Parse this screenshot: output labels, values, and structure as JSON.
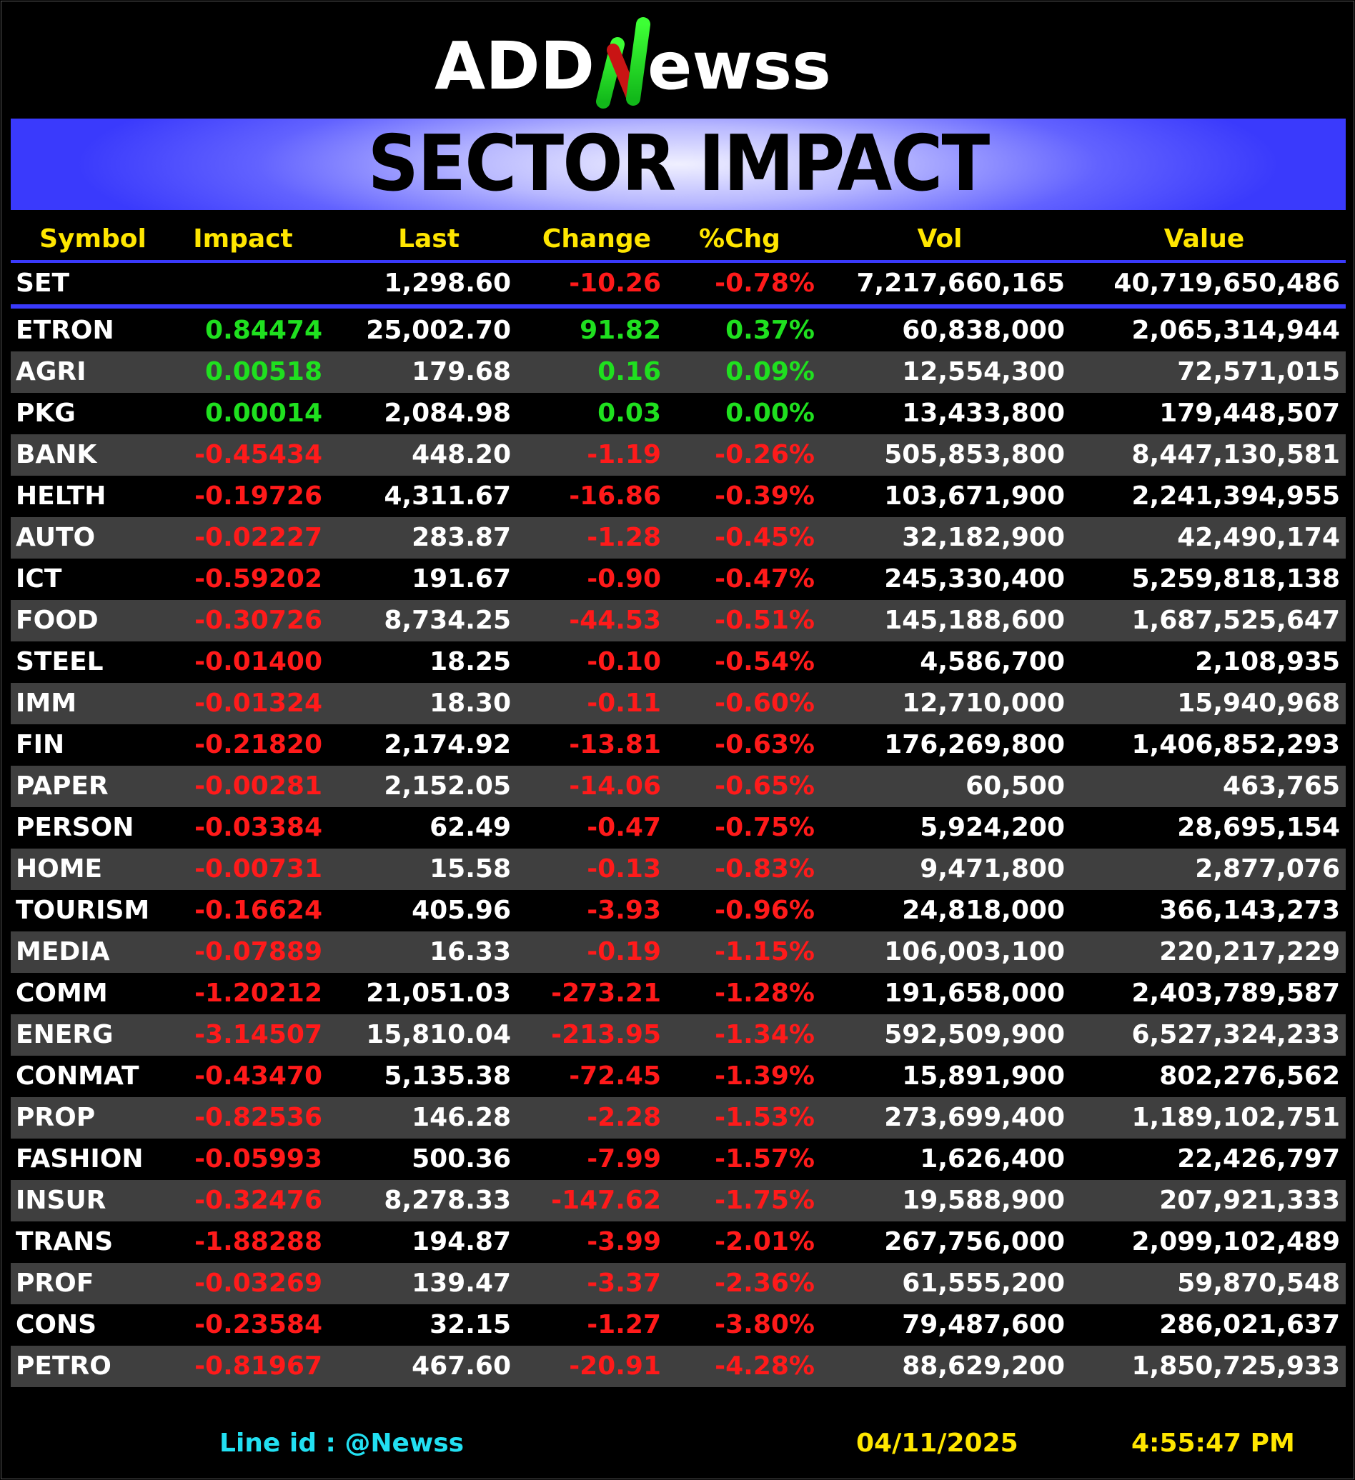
{
  "logo": {
    "text_left": "ADD",
    "text_right": "ewss"
  },
  "banner": {
    "title": "SECTOR IMPACT"
  },
  "columns": {
    "symbol": "Symbol",
    "impact": "Impact",
    "last": "Last",
    "change": "Change",
    "pct": "%Chg",
    "vol": "Vol",
    "value": "Value"
  },
  "index_row": {
    "symbol": "SET",
    "impact": "",
    "last": "1,298.60",
    "change": "-10.26",
    "pct": "-0.78%",
    "vol": "7,217,660,165",
    "value": "40,719,650,486",
    "direction": "down"
  },
  "rows": [
    {
      "symbol": "ETRON",
      "impact": "0.84474",
      "last": "25,002.70",
      "change": "91.82",
      "pct": "0.37%",
      "vol": "60,838,000",
      "value": "2,065,314,944",
      "direction": "up"
    },
    {
      "symbol": "AGRI",
      "impact": "0.00518",
      "last": "179.68",
      "change": "0.16",
      "pct": "0.09%",
      "vol": "12,554,300",
      "value": "72,571,015",
      "direction": "up"
    },
    {
      "symbol": "PKG",
      "impact": "0.00014",
      "last": "2,084.98",
      "change": "0.03",
      "pct": "0.00%",
      "vol": "13,433,800",
      "value": "179,448,507",
      "direction": "up"
    },
    {
      "symbol": "BANK",
      "impact": "-0.45434",
      "last": "448.20",
      "change": "-1.19",
      "pct": "-0.26%",
      "vol": "505,853,800",
      "value": "8,447,130,581",
      "direction": "down"
    },
    {
      "symbol": "HELTH",
      "impact": "-0.19726",
      "last": "4,311.67",
      "change": "-16.86",
      "pct": "-0.39%",
      "vol": "103,671,900",
      "value": "2,241,394,955",
      "direction": "down"
    },
    {
      "symbol": "AUTO",
      "impact": "-0.02227",
      "last": "283.87",
      "change": "-1.28",
      "pct": "-0.45%",
      "vol": "32,182,900",
      "value": "42,490,174",
      "direction": "down"
    },
    {
      "symbol": "ICT",
      "impact": "-0.59202",
      "last": "191.67",
      "change": "-0.90",
      "pct": "-0.47%",
      "vol": "245,330,400",
      "value": "5,259,818,138",
      "direction": "down"
    },
    {
      "symbol": "FOOD",
      "impact": "-0.30726",
      "last": "8,734.25",
      "change": "-44.53",
      "pct": "-0.51%",
      "vol": "145,188,600",
      "value": "1,687,525,647",
      "direction": "down"
    },
    {
      "symbol": "STEEL",
      "impact": "-0.01400",
      "last": "18.25",
      "change": "-0.10",
      "pct": "-0.54%",
      "vol": "4,586,700",
      "value": "2,108,935",
      "direction": "down"
    },
    {
      "symbol": "IMM",
      "impact": "-0.01324",
      "last": "18.30",
      "change": "-0.11",
      "pct": "-0.60%",
      "vol": "12,710,000",
      "value": "15,940,968",
      "direction": "down"
    },
    {
      "symbol": "FIN",
      "impact": "-0.21820",
      "last": "2,174.92",
      "change": "-13.81",
      "pct": "-0.63%",
      "vol": "176,269,800",
      "value": "1,406,852,293",
      "direction": "down"
    },
    {
      "symbol": "PAPER",
      "impact": "-0.00281",
      "last": "2,152.05",
      "change": "-14.06",
      "pct": "-0.65%",
      "vol": "60,500",
      "value": "463,765",
      "direction": "down"
    },
    {
      "symbol": "PERSON",
      "impact": "-0.03384",
      "last": "62.49",
      "change": "-0.47",
      "pct": "-0.75%",
      "vol": "5,924,200",
      "value": "28,695,154",
      "direction": "down"
    },
    {
      "symbol": "HOME",
      "impact": "-0.00731",
      "last": "15.58",
      "change": "-0.13",
      "pct": "-0.83%",
      "vol": "9,471,800",
      "value": "2,877,076",
      "direction": "down"
    },
    {
      "symbol": "TOURISM",
      "impact": "-0.16624",
      "last": "405.96",
      "change": "-3.93",
      "pct": "-0.96%",
      "vol": "24,818,000",
      "value": "366,143,273",
      "direction": "down"
    },
    {
      "symbol": "MEDIA",
      "impact": "-0.07889",
      "last": "16.33",
      "change": "-0.19",
      "pct": "-1.15%",
      "vol": "106,003,100",
      "value": "220,217,229",
      "direction": "down"
    },
    {
      "symbol": "COMM",
      "impact": "-1.20212",
      "last": "21,051.03",
      "change": "-273.21",
      "pct": "-1.28%",
      "vol": "191,658,000",
      "value": "2,403,789,587",
      "direction": "down"
    },
    {
      "symbol": "ENERG",
      "impact": "-3.14507",
      "last": "15,810.04",
      "change": "-213.95",
      "pct": "-1.34%",
      "vol": "592,509,900",
      "value": "6,527,324,233",
      "direction": "down"
    },
    {
      "symbol": "CONMAT",
      "impact": "-0.43470",
      "last": "5,135.38",
      "change": "-72.45",
      "pct": "-1.39%",
      "vol": "15,891,900",
      "value": "802,276,562",
      "direction": "down"
    },
    {
      "symbol": "PROP",
      "impact": "-0.82536",
      "last": "146.28",
      "change": "-2.28",
      "pct": "-1.53%",
      "vol": "273,699,400",
      "value": "1,189,102,751",
      "direction": "down"
    },
    {
      "symbol": "FASHION",
      "impact": "-0.05993",
      "last": "500.36",
      "change": "-7.99",
      "pct": "-1.57%",
      "vol": "1,626,400",
      "value": "22,426,797",
      "direction": "down"
    },
    {
      "symbol": "INSUR",
      "impact": "-0.32476",
      "last": "8,278.33",
      "change": "-147.62",
      "pct": "-1.75%",
      "vol": "19,588,900",
      "value": "207,921,333",
      "direction": "down"
    },
    {
      "symbol": "TRANS",
      "impact": "-1.88288",
      "last": "194.87",
      "change": "-3.99",
      "pct": "-2.01%",
      "vol": "267,756,000",
      "value": "2,099,102,489",
      "direction": "down"
    },
    {
      "symbol": "PROF",
      "impact": "-0.03269",
      "last": "139.47",
      "change": "-3.37",
      "pct": "-2.36%",
      "vol": "61,555,200",
      "value": "59,870,548",
      "direction": "down"
    },
    {
      "symbol": "CONS",
      "impact": "-0.23584",
      "last": "32.15",
      "change": "-1.27",
      "pct": "-3.80%",
      "vol": "79,487,600",
      "value": "286,021,637",
      "direction": "down"
    },
    {
      "symbol": "PETRO",
      "impact": "-0.81967",
      "last": "467.60",
      "change": "-20.91",
      "pct": "-4.28%",
      "vol": "88,629,200",
      "value": "1,850,725,933",
      "direction": "down"
    }
  ],
  "footer": {
    "line_id": "Line id  : @Newss",
    "date": "04/11/2025",
    "time": "4:55:47 PM"
  },
  "colors": {
    "positive": "#1fe01f",
    "negative": "#ff1a1a",
    "header": "#ffe600",
    "accent": "#3a3afc",
    "line_id": "#22e0f2"
  }
}
